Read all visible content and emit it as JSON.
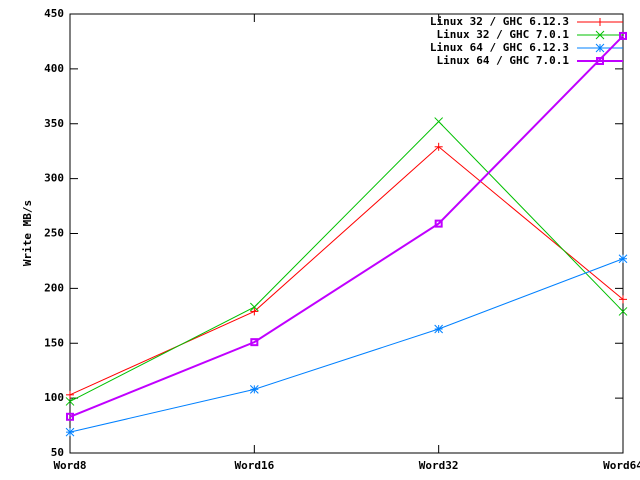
{
  "chart_data": {
    "type": "line",
    "y_label": "Write MB/s",
    "categories": [
      "Word8",
      "Word16",
      "Word32",
      "Word64"
    ],
    "series": [
      {
        "name": "Linux 32 / GHC 6.12.3",
        "color": "#ff0000",
        "marker": "plus",
        "values": [
          103,
          179,
          329,
          190
        ]
      },
      {
        "name": "Linux 32 / GHC 7.0.1",
        "color": "#00c000",
        "marker": "cross",
        "values": [
          97,
          183,
          352,
          179
        ]
      },
      {
        "name": "Linux 64 / GHC 6.12.3",
        "color": "#0080ff",
        "marker": "star",
        "values": [
          69,
          108,
          163,
          227
        ]
      },
      {
        "name": "Linux 64 / GHC 7.0.1",
        "color": "#c000ff",
        "marker": "box",
        "line_width": 2,
        "values": [
          83,
          151,
          259,
          430
        ]
      }
    ],
    "ylim": [
      50,
      450
    ],
    "yticks": [
      50,
      100,
      150,
      200,
      250,
      300,
      350,
      400,
      450
    ],
    "legend": "top-right"
  }
}
